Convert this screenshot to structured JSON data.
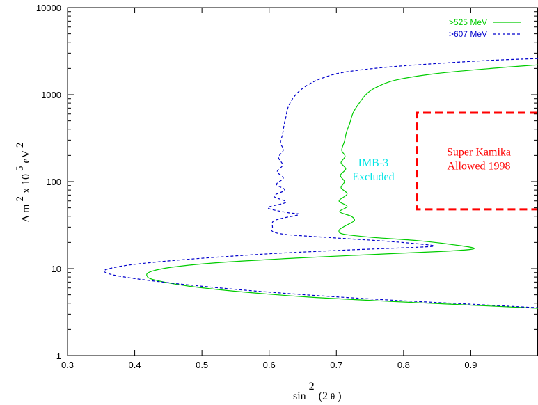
{
  "chart_data": {
    "type": "line",
    "title": "",
    "xlabel": {
      "base": "sin",
      "sup": "2",
      "arg": "(2",
      "theta": "θ",
      "close": ")"
    },
    "ylabel": {
      "delta": "Δ",
      "m": "m",
      "m_sup": "2",
      "times": "x 10",
      "exp": "5",
      "unit": "eV",
      "unit_sup": "2"
    },
    "xlim": [
      0.3,
      1.0
    ],
    "ylim": [
      1,
      10000
    ],
    "yscale": "log",
    "grid": false,
    "x_ticks": [
      "0.3",
      "0.4",
      "0.5",
      "0.6",
      "0.7",
      "0.8",
      "0.9"
    ],
    "y_ticks": [
      "1",
      "10",
      "100",
      "1000",
      "10000"
    ],
    "legend": {
      "position": "top-right"
    },
    "series": [
      {
        "name": ">525 MeV",
        "color": "#00cc00",
        "style": "solid",
        "points": [
          [
            1.0,
            2200
          ],
          [
            0.93,
            2000
          ],
          [
            0.85,
            1750
          ],
          [
            0.79,
            1480
          ],
          [
            0.76,
            1220
          ],
          [
            0.745,
            1020
          ],
          [
            0.735,
            820
          ],
          [
            0.725,
            620
          ],
          [
            0.72,
            470
          ],
          [
            0.715,
            370
          ],
          [
            0.712,
            290
          ],
          [
            0.708,
            230
          ],
          [
            0.713,
            195
          ],
          [
            0.707,
            165
          ],
          [
            0.714,
            140
          ],
          [
            0.706,
            118
          ],
          [
            0.712,
            100
          ],
          [
            0.707,
            85
          ],
          [
            0.716,
            72
          ],
          [
            0.704,
            60
          ],
          [
            0.716,
            52
          ],
          [
            0.705,
            45
          ],
          [
            0.722,
            40
          ],
          [
            0.727,
            36
          ],
          [
            0.72,
            33
          ],
          [
            0.71,
            30
          ],
          [
            0.704,
            27.5
          ],
          [
            0.71,
            25
          ],
          [
            0.75,
            23
          ],
          [
            0.82,
            21
          ],
          [
            0.87,
            19
          ],
          [
            0.905,
            17
          ],
          [
            0.86,
            15.8
          ],
          [
            0.76,
            14.6
          ],
          [
            0.64,
            13.2
          ],
          [
            0.53,
            11.8
          ],
          [
            0.46,
            10.5
          ],
          [
            0.425,
            9.3
          ],
          [
            0.418,
            8.3
          ],
          [
            0.43,
            7.4
          ],
          [
            0.48,
            6.3
          ],
          [
            0.56,
            5.4
          ],
          [
            0.66,
            4.7
          ],
          [
            0.78,
            4.2
          ],
          [
            0.9,
            3.8
          ],
          [
            1.0,
            3.5
          ]
        ]
      },
      {
        "name": ">607 MeV",
        "color": "#0000cc",
        "style": "dashed",
        "points": [
          [
            1.0,
            2600
          ],
          [
            0.93,
            2480
          ],
          [
            0.85,
            2280
          ],
          [
            0.77,
            2050
          ],
          [
            0.71,
            1800
          ],
          [
            0.68,
            1560
          ],
          [
            0.66,
            1330
          ],
          [
            0.645,
            1100
          ],
          [
            0.635,
            900
          ],
          [
            0.628,
            710
          ],
          [
            0.625,
            560
          ],
          [
            0.622,
            440
          ],
          [
            0.62,
            350
          ],
          [
            0.617,
            280
          ],
          [
            0.621,
            230
          ],
          [
            0.614,
            190
          ],
          [
            0.62,
            155
          ],
          [
            0.612,
            130
          ],
          [
            0.621,
            110
          ],
          [
            0.611,
            93
          ],
          [
            0.623,
            80
          ],
          [
            0.607,
            68
          ],
          [
            0.625,
            58
          ],
          [
            0.598,
            50
          ],
          [
            0.628,
            44
          ],
          [
            0.645,
            42
          ],
          [
            0.62,
            38
          ],
          [
            0.606,
            35
          ],
          [
            0.605,
            30
          ],
          [
            0.606,
            26.5
          ],
          [
            0.63,
            24.5
          ],
          [
            0.7,
            22.5
          ],
          [
            0.78,
            20.5
          ],
          [
            0.83,
            19
          ],
          [
            0.845,
            18.2
          ],
          [
            0.82,
            17.6
          ],
          [
            0.72,
            16.4
          ],
          [
            0.6,
            14.8
          ],
          [
            0.48,
            12.8
          ],
          [
            0.4,
            11.2
          ],
          [
            0.362,
            10
          ],
          [
            0.355,
            9.2
          ],
          [
            0.37,
            8.4
          ],
          [
            0.41,
            7.5
          ],
          [
            0.48,
            6.5
          ],
          [
            0.57,
            5.6
          ],
          [
            0.67,
            4.9
          ],
          [
            0.78,
            4.35
          ],
          [
            0.9,
            3.9
          ],
          [
            1.0,
            3.55
          ]
        ]
      }
    ],
    "annotations": [
      {
        "id": "imb",
        "lines": [
          "IMB-3",
          "Excluded"
        ],
        "color": "#00e5e5",
        "x": 0.755,
        "y": 150
      },
      {
        "id": "sk",
        "lines": [
          "Super Kamika",
          "Allowed 1998"
        ],
        "color": "#ff0000",
        "x": 0.912,
        "y": 200
      }
    ],
    "region": {
      "label": "Super Kamika Allowed 1998",
      "color": "#ff0000",
      "style": "dashed",
      "x": [
        0.82,
        1.0
      ],
      "y": [
        48,
        620
      ]
    }
  }
}
